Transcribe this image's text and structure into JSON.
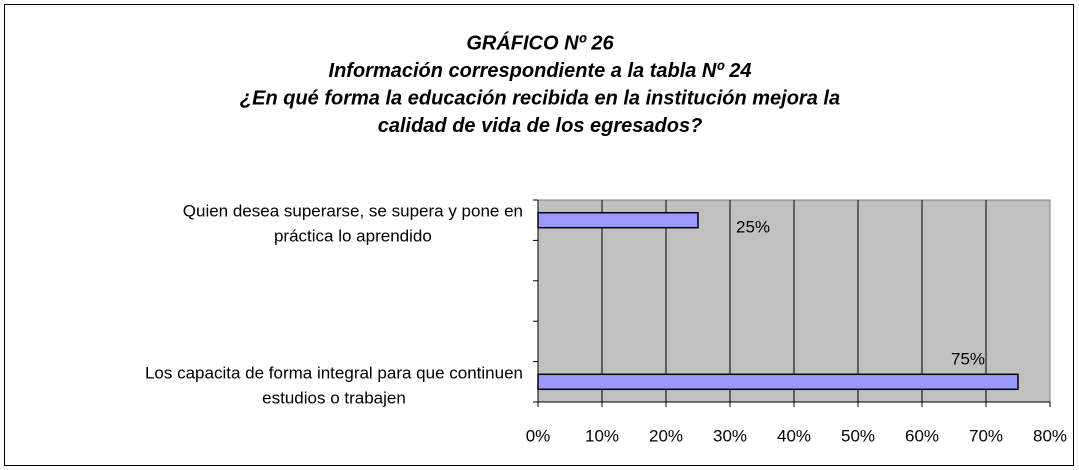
{
  "chart_data": {
    "type": "barh",
    "title": [
      "GRÁFICO Nº 26",
      "Información correspondiente a la tabla Nº 24",
      "¿En qué forma la educación recibida en la institución mejora la",
      "calidad de vida de los egresados?"
    ],
    "categories": [
      [
        "Quien desea superarse, se supera y pone en",
        "práctica lo aprendido"
      ],
      null,
      null,
      null,
      [
        "Los capacita de forma integral para que continuen",
        "estudios o trabajen"
      ]
    ],
    "values": [
      25,
      null,
      null,
      null,
      75
    ],
    "value_labels": [
      "25%",
      null,
      null,
      null,
      "75%"
    ],
    "color": "#9999ff",
    "xlim": [
      0,
      80
    ],
    "xticks": [
      {
        "value": 0,
        "label": "0%"
      },
      {
        "value": 10,
        "label": "10%"
      },
      {
        "value": 20,
        "label": "20%"
      },
      {
        "value": 30,
        "label": "30%"
      },
      {
        "value": 40,
        "label": "40%"
      },
      {
        "value": 50,
        "label": "50%"
      },
      {
        "value": 60,
        "label": "60%"
      },
      {
        "value": 70,
        "label": "70%"
      },
      {
        "value": 80,
        "label": "80%"
      }
    ],
    "grid": true
  }
}
